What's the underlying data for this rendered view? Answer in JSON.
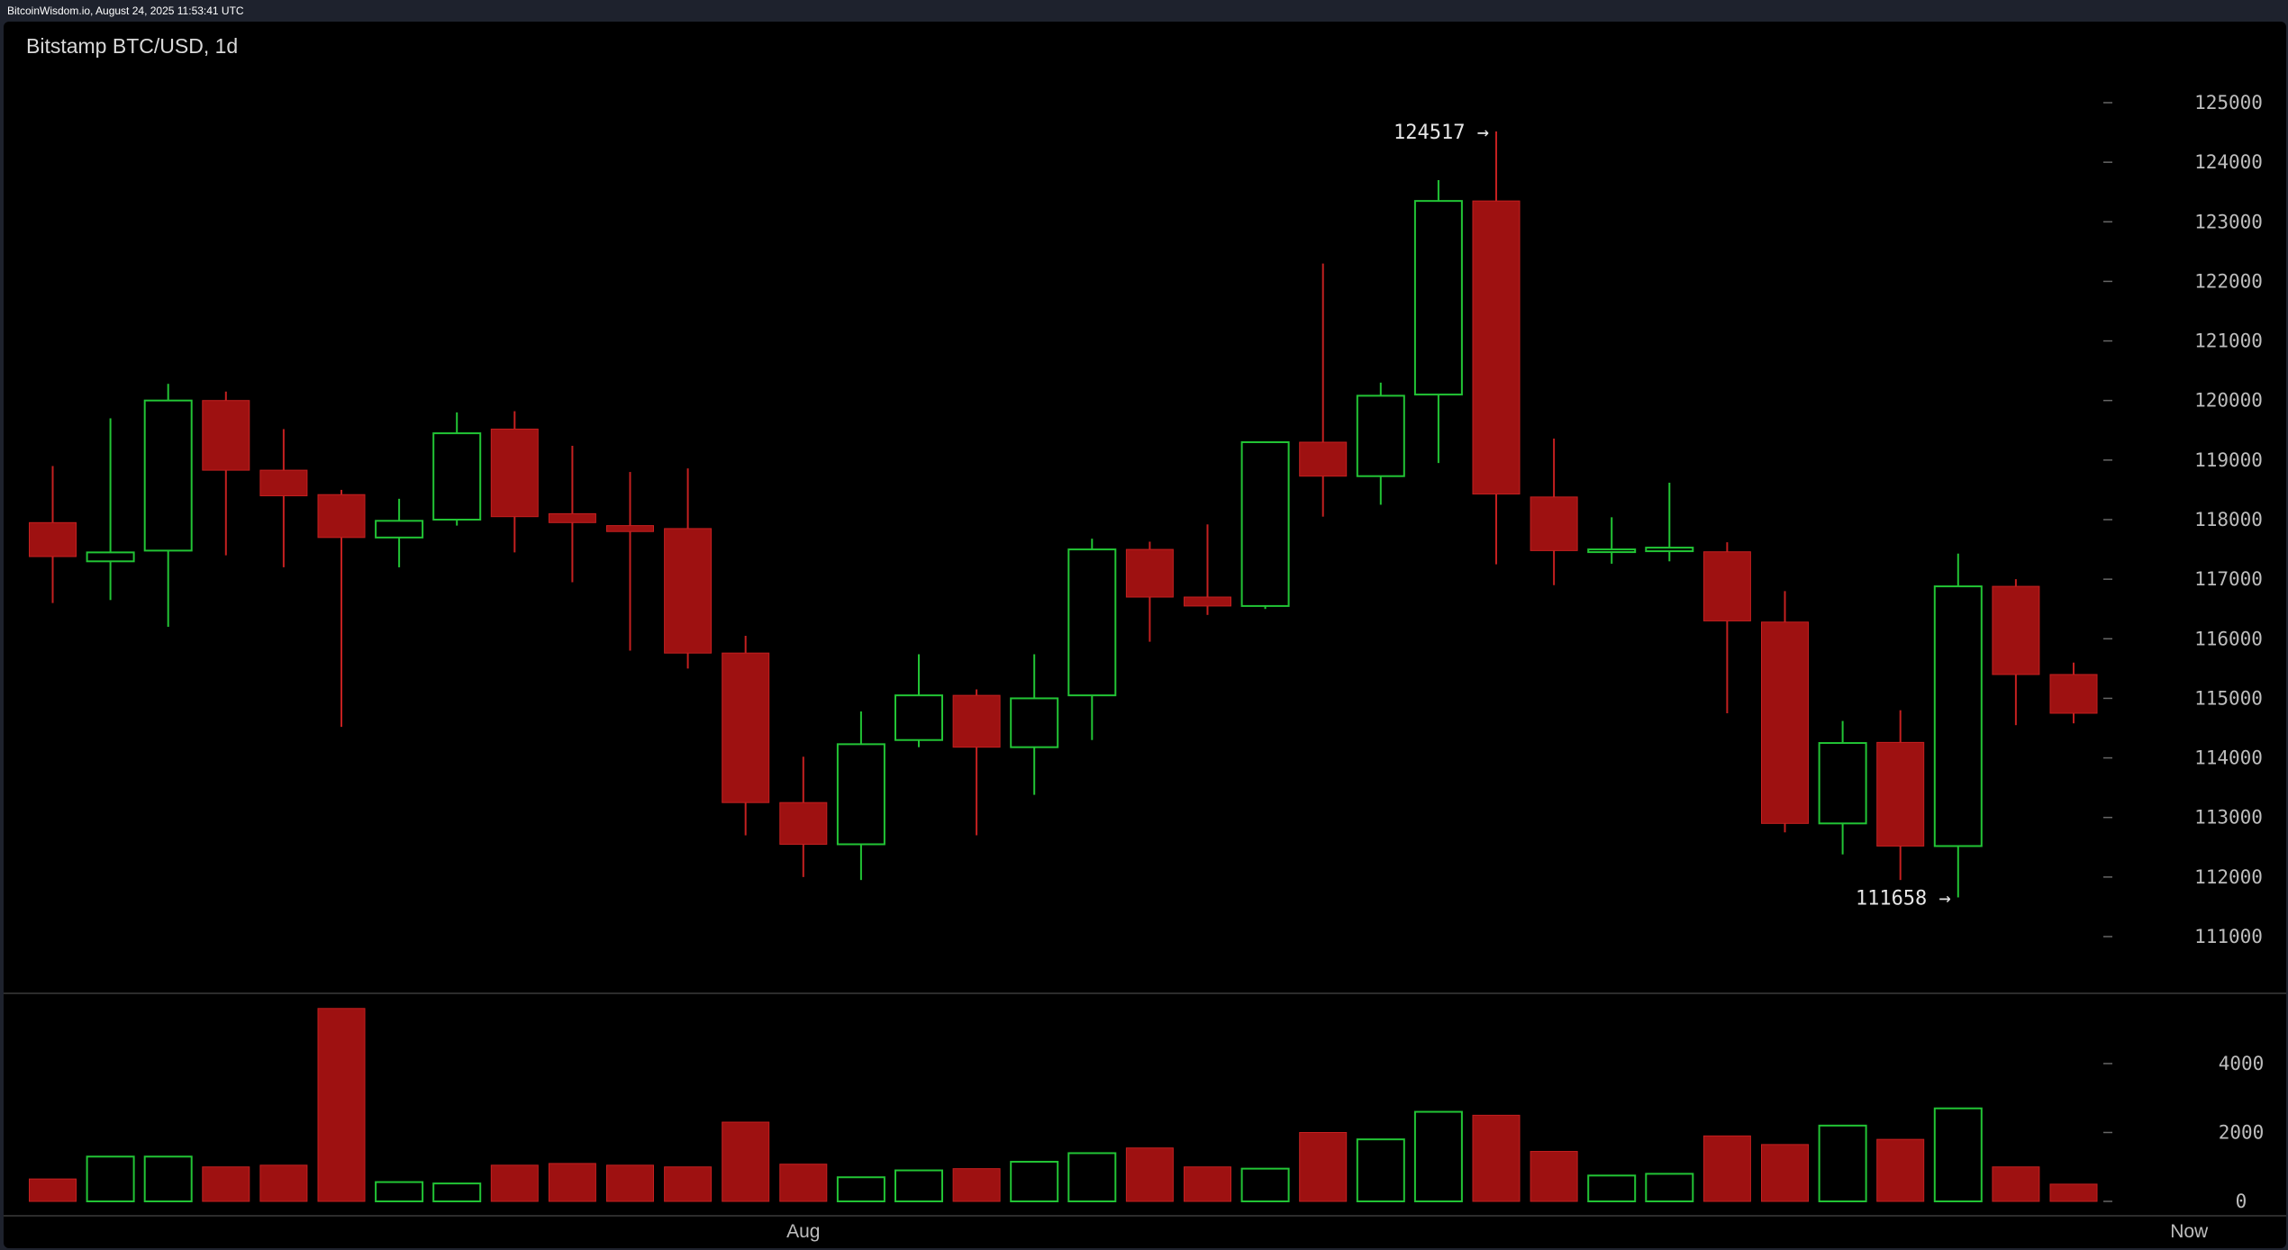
{
  "header": {
    "source_text": "BitcoinWisdom.io, August 24, 2025 11:53:41 UTC"
  },
  "chart_title": "Bitstamp BTC/USD, 1d",
  "colors": {
    "up": "#22c435",
    "down": "#9e1111",
    "down_wick": "#c42020",
    "background": "#000000",
    "text": "#bdbdbd",
    "frame": "#1e222d"
  },
  "chart_data": {
    "type": "candlestick",
    "title": "Bitstamp BTC/USD, 1d",
    "price_ticks": [
      111000,
      112000,
      113000,
      114000,
      115000,
      116000,
      117000,
      118000,
      119000,
      120000,
      121000,
      122000,
      123000,
      124000,
      125000
    ],
    "volume_ticks": [
      0,
      2000,
      4000
    ],
    "x_labels": [
      {
        "label": "Aug",
        "index": 13
      },
      {
        "label": "Now",
        "index": 37
      }
    ],
    "annotations": [
      {
        "label": "124517 →",
        "value": 124517,
        "index": 25
      },
      {
        "label": "111658 →",
        "value": 111658,
        "index": 33
      }
    ],
    "candles": [
      {
        "o": 117950,
        "h": 118900,
        "l": 116600,
        "c": 117380,
        "v": 650
      },
      {
        "o": 117300,
        "h": 119700,
        "l": 116650,
        "c": 117450,
        "v": 1300
      },
      {
        "o": 117480,
        "h": 120280,
        "l": 116200,
        "c": 120000,
        "v": 1300
      },
      {
        "o": 120000,
        "h": 120150,
        "l": 117400,
        "c": 118830,
        "v": 1000
      },
      {
        "o": 118830,
        "h": 119520,
        "l": 117200,
        "c": 118400,
        "v": 1050
      },
      {
        "o": 118420,
        "h": 118500,
        "l": 114520,
        "c": 117700,
        "v": 5600
      },
      {
        "o": 117700,
        "h": 118350,
        "l": 117200,
        "c": 117980,
        "v": 560
      },
      {
        "o": 118000,
        "h": 119800,
        "l": 117900,
        "c": 119450,
        "v": 520
      },
      {
        "o": 119520,
        "h": 119820,
        "l": 117450,
        "c": 118050,
        "v": 1050
      },
      {
        "o": 118100,
        "h": 119240,
        "l": 116950,
        "c": 117950,
        "v": 1100
      },
      {
        "o": 117900,
        "h": 118800,
        "l": 115800,
        "c": 117800,
        "v": 1050
      },
      {
        "o": 117850,
        "h": 118860,
        "l": 115500,
        "c": 115760,
        "v": 1000
      },
      {
        "o": 115760,
        "h": 116050,
        "l": 112700,
        "c": 113250,
        "v": 2300
      },
      {
        "o": 113250,
        "h": 114020,
        "l": 112000,
        "c": 112550,
        "v": 1080
      },
      {
        "o": 112550,
        "h": 114780,
        "l": 111950,
        "c": 114230,
        "v": 700
      },
      {
        "o": 114300,
        "h": 115740,
        "l": 114180,
        "c": 115050,
        "v": 900
      },
      {
        "o": 115050,
        "h": 115150,
        "l": 112700,
        "c": 114180,
        "v": 950
      },
      {
        "o": 114180,
        "h": 115740,
        "l": 113380,
        "c": 115000,
        "v": 1150
      },
      {
        "o": 115050,
        "h": 117680,
        "l": 114300,
        "c": 117500,
        "v": 1400
      },
      {
        "o": 117500,
        "h": 117630,
        "l": 115950,
        "c": 116700,
        "v": 1550
      },
      {
        "o": 116700,
        "h": 117920,
        "l": 116400,
        "c": 116550,
        "v": 1000
      },
      {
        "o": 116550,
        "h": 119300,
        "l": 116500,
        "c": 119300,
        "v": 950
      },
      {
        "o": 119300,
        "h": 122300,
        "l": 118050,
        "c": 118730,
        "v": 2000
      },
      {
        "o": 118730,
        "h": 120300,
        "l": 118250,
        "c": 120080,
        "v": 1800
      },
      {
        "o": 120100,
        "h": 123700,
        "l": 118950,
        "c": 123350,
        "v": 2600
      },
      {
        "o": 123350,
        "h": 124517,
        "l": 117250,
        "c": 118430,
        "v": 2500
      },
      {
        "o": 118380,
        "h": 119360,
        "l": 116900,
        "c": 117480,
        "v": 1450
      },
      {
        "o": 117480,
        "h": 118040,
        "l": 117260,
        "c": 117500,
        "v": 750
      },
      {
        "o": 117470,
        "h": 118620,
        "l": 117300,
        "c": 117530,
        "v": 800
      },
      {
        "o": 117460,
        "h": 117620,
        "l": 114750,
        "c": 116300,
        "v": 1900
      },
      {
        "o": 116280,
        "h": 116800,
        "l": 112750,
        "c": 112900,
        "v": 1650
      },
      {
        "o": 112900,
        "h": 114620,
        "l": 112380,
        "c": 114250,
        "v": 2200
      },
      {
        "o": 114260,
        "h": 114800,
        "l": 111950,
        "c": 112520,
        "v": 1800
      },
      {
        "o": 112520,
        "h": 117430,
        "l": 111658,
        "c": 116880,
        "v": 2700
      },
      {
        "o": 116880,
        "h": 117000,
        "l": 114550,
        "c": 115400,
        "v": 1000
      },
      {
        "o": 115400,
        "h": 115600,
        "l": 114580,
        "c": 114750,
        "v": 500
      }
    ]
  }
}
